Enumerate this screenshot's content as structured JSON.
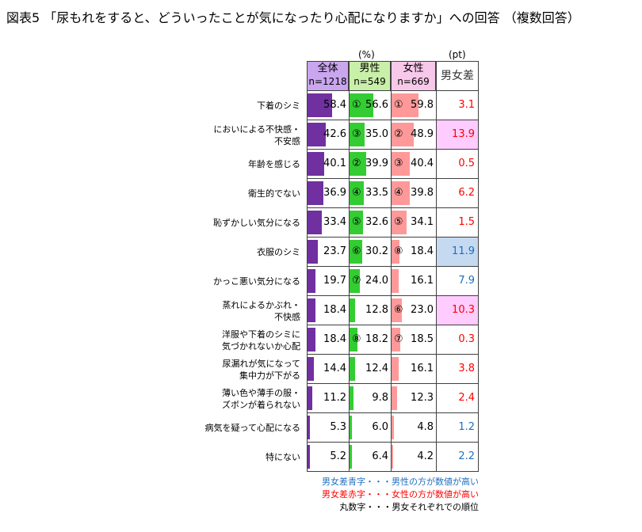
{
  "title": "図表5 「尿もれをすると、どういったことが気になったり心配になりますか」への回答 （複数回答）",
  "unit_percent": "(%)",
  "unit_pt": "(pt)",
  "headers": {
    "all": "全体",
    "all_n": "n=1218",
    "male": "男性",
    "male_n": "n=549",
    "female": "女性",
    "female_n": "n=669",
    "diff": "男女差"
  },
  "colors": {
    "all": "#7030a0",
    "male": "#33cc33",
    "female": "#ff9999",
    "red": "#ff0000",
    "blue": "#1f6fbf",
    "pink_bg": "#ffccff",
    "blue_bg": "#c5d9f1"
  },
  "chart_data": {
    "type": "table",
    "xlim": [
      0,
      100
    ],
    "rows": [
      {
        "label": [
          "下着のシミ"
        ],
        "all": "58.4",
        "male": "56.6",
        "male_rank": "①",
        "female": "59.8",
        "female_rank": "①",
        "diff": "3.1",
        "diff_color": "red",
        "highlight": ""
      },
      {
        "label": [
          "においによる不快感・",
          "不安感"
        ],
        "all": "42.6",
        "male": "35.0",
        "male_rank": "③",
        "female": "48.9",
        "female_rank": "②",
        "diff": "13.9",
        "diff_color": "red",
        "highlight": "pink"
      },
      {
        "label": [
          "年齢を感じる"
        ],
        "all": "40.1",
        "male": "39.9",
        "male_rank": "②",
        "female": "40.4",
        "female_rank": "③",
        "diff": "0.5",
        "diff_color": "red",
        "highlight": ""
      },
      {
        "label": [
          "衛生的でない"
        ],
        "all": "36.9",
        "male": "33.5",
        "male_rank": "④",
        "female": "39.8",
        "female_rank": "④",
        "diff": "6.2",
        "diff_color": "red",
        "highlight": ""
      },
      {
        "label": [
          "恥ずかしい気分になる"
        ],
        "all": "33.4",
        "male": "32.6",
        "male_rank": "⑤",
        "female": "34.1",
        "female_rank": "⑤",
        "diff": "1.5",
        "diff_color": "red",
        "highlight": ""
      },
      {
        "label": [
          "衣服のシミ"
        ],
        "all": "23.7",
        "male": "30.2",
        "male_rank": "⑥",
        "female": "18.4",
        "female_rank": "⑧",
        "diff": "11.9",
        "diff_color": "blue",
        "highlight": "blue"
      },
      {
        "label": [
          "かっこ悪い気分になる"
        ],
        "all": "19.7",
        "male": "24.0",
        "male_rank": "⑦",
        "female": "16.1",
        "female_rank": "",
        "diff": "7.9",
        "diff_color": "blue",
        "highlight": ""
      },
      {
        "label": [
          "蒸れによるかぶれ・",
          "不快感"
        ],
        "all": "18.4",
        "male": "12.8",
        "male_rank": "",
        "female": "23.0",
        "female_rank": "⑥",
        "diff": "10.3",
        "diff_color": "red",
        "highlight": "pink"
      },
      {
        "label": [
          "洋服や下着のシミに",
          "気づかれないか心配"
        ],
        "all": "18.4",
        "male": "18.2",
        "male_rank": "⑧",
        "female": "18.5",
        "female_rank": "⑦",
        "diff": "0.3",
        "diff_color": "red",
        "highlight": ""
      },
      {
        "label": [
          "尿漏れが気になって",
          "集中力が下がる"
        ],
        "all": "14.4",
        "male": "12.4",
        "male_rank": "",
        "female": "16.1",
        "female_rank": "",
        "diff": "3.8",
        "diff_color": "red",
        "highlight": ""
      },
      {
        "label": [
          "薄い色や薄手の服・",
          "ズボンが着られない"
        ],
        "all": "11.2",
        "male": "9.8",
        "male_rank": "",
        "female": "12.3",
        "female_rank": "",
        "diff": "2.4",
        "diff_color": "red",
        "highlight": ""
      },
      {
        "label": [
          "病気を疑って心配になる"
        ],
        "all": "5.3",
        "male": "6.0",
        "male_rank": "",
        "female": "4.8",
        "female_rank": "",
        "diff": "1.2",
        "diff_color": "blue",
        "highlight": ""
      },
      {
        "label": [
          "特にない"
        ],
        "all": "5.2",
        "male": "6.4",
        "male_rank": "",
        "female": "4.2",
        "female_rank": "",
        "diff": "2.2",
        "diff_color": "blue",
        "highlight": ""
      }
    ]
  },
  "legend": [
    {
      "text": "男女差青字・・・男性の方が数値が高い",
      "color": "blue"
    },
    {
      "text": "男女差赤字・・・女性の方が数値が高い",
      "color": "red"
    },
    {
      "text": "丸数字・・・男女それぞれでの順位",
      "color": "black"
    }
  ]
}
